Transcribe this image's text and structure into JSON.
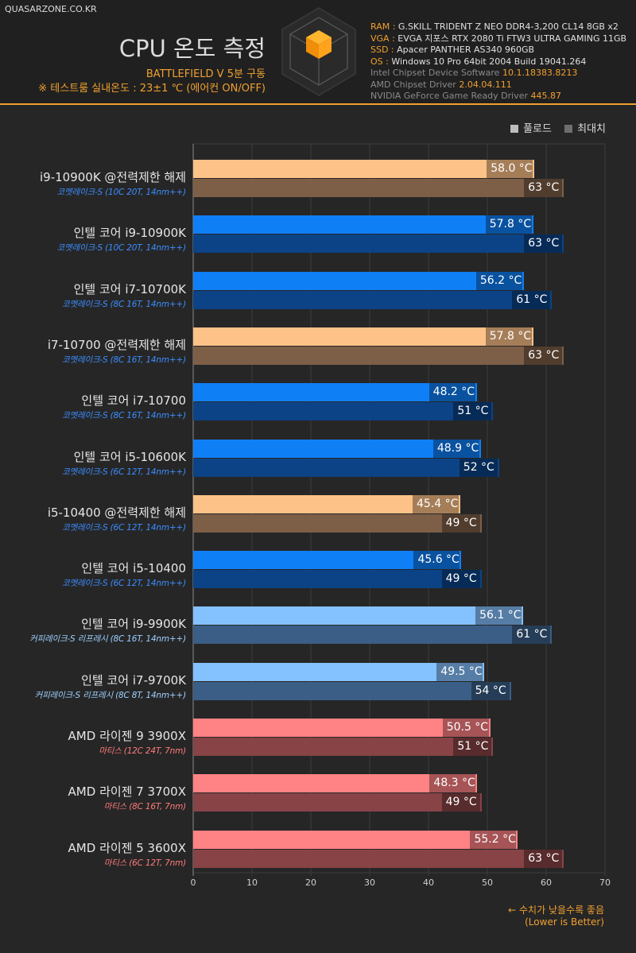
{
  "site": "QUASARZONE.CO.KR",
  "header": {
    "title": "CPU 온도 측정",
    "subtitle": "BATTLEFIELD V 5분 구동",
    "note": "※ 테스트룸 실내온도 : 23±1 ℃  (에어컨 ON/OFF)"
  },
  "specs": [
    {
      "key": "RAM",
      "value": "G.SKILL TRIDENT Z NEO DDR4-3,200 CL14 8GB x2"
    },
    {
      "key": "VGA",
      "value": "EVGA 지포스 RTX 2080 Ti FTW3 ULTRA GAMING 11GB"
    },
    {
      "key": "SSD",
      "value": "Apacer PANTHER AS340 960GB"
    },
    {
      "key": "OS",
      "value": "Windows 10 Pro 64bit 2004 Build 19041.264"
    }
  ],
  "drivers": [
    {
      "label": "Intel Chipset Device Software",
      "version": "10.1.18383.8213"
    },
    {
      "label": "AMD Chipset Driver",
      "version": "2.04.04.111"
    },
    {
      "label": "NVIDIA GeForce Game Ready Driver",
      "version": "445.87"
    }
  ],
  "legend": [
    "풀로드",
    "최대치"
  ],
  "colors": {
    "intel_oc_load": "#fdc287",
    "intel_oc_max": "#7d5f47",
    "intel10_load": "#0f7ff6",
    "intel10_max": "#0c4386",
    "intel9_load": "#84c1ff",
    "intel9_max": "#3b5e86",
    "amd_load": "#ff8284",
    "amd_max": "#874346",
    "sub_intel10": "#3b8dff",
    "sub_intel9": "#9cd0ff",
    "sub_amd": "#ff7a7a"
  },
  "chart_data": {
    "type": "bar",
    "orientation": "horizontal",
    "title": "CPU 온도 측정",
    "xlim": [
      0,
      70
    ],
    "xticks": [
      0,
      10,
      20,
      30,
      40,
      50,
      60,
      70
    ],
    "grid": true,
    "legend_position": "top-right",
    "categories": [
      {
        "name": "i9-10900K @전력제한 해제",
        "sub": "코멧레이크-S (10C 20T, 14nm++)",
        "group": "intel_oc"
      },
      {
        "name": "인텔 코어 i9-10900K",
        "sub": "코멧레이크-S (10C 20T, 14nm++)",
        "group": "intel10"
      },
      {
        "name": "인텔 코어 i7-10700K",
        "sub": "코멧레이크-S (8C 16T, 14nm++)",
        "group": "intel10"
      },
      {
        "name": "i7-10700 @전력제한 해제",
        "sub": "코멧레이크-S (8C 16T, 14nm++)",
        "group": "intel_oc"
      },
      {
        "name": "인텔 코어 i7-10700",
        "sub": "코멧레이크-S (8C 16T, 14nm++)",
        "group": "intel10"
      },
      {
        "name": "인텔 코어 i5-10600K",
        "sub": "코멧레이크-S (6C 12T, 14nm++)",
        "group": "intel10"
      },
      {
        "name": "i5-10400 @전력제한 해제",
        "sub": "코멧레이크-S (6C 12T, 14nm++)",
        "group": "intel_oc"
      },
      {
        "name": "인텔 코어 i5-10400",
        "sub": "코멧레이크-S (6C 12T, 14nm++)",
        "group": "intel10"
      },
      {
        "name": "인텔 코어 i9-9900K",
        "sub": "커피레이크-S 리프레시 (8C 16T, 14nm++)",
        "group": "intel9"
      },
      {
        "name": "인텔 코어 i7-9700K",
        "sub": "커피레이크-S 리프레시 (8C 8T, 14nm++)",
        "group": "intel9"
      },
      {
        "name": "AMD 라이젠 9 3900X",
        "sub": "마티스 (12C 24T, 7nm)",
        "group": "amd"
      },
      {
        "name": "AMD 라이젠 7 3700X",
        "sub": "마티스 (8C 16T, 7nm)",
        "group": "amd"
      },
      {
        "name": "AMD 라이젠 5 3600X",
        "sub": "마티스 (6C 12T, 7nm)",
        "group": "amd"
      }
    ],
    "series": [
      {
        "name": "풀로드",
        "unit": "°C",
        "values": [
          58.0,
          57.8,
          56.2,
          57.8,
          48.2,
          48.9,
          45.4,
          45.6,
          56.1,
          49.5,
          50.5,
          48.3,
          55.2
        ],
        "labels": [
          "58.0 °C",
          "57.8 °C",
          "56.2 °C",
          "57.8 °C",
          "48.2 °C",
          "48.9 °C",
          "45.4 °C",
          "45.6 °C",
          "56.1 °C",
          "49.5 °C",
          "50.5 °C",
          "48.3 °C",
          "55.2 °C"
        ]
      },
      {
        "name": "최대치",
        "unit": "°C",
        "values": [
          63,
          63,
          61,
          63,
          51,
          52,
          49,
          49,
          61,
          54,
          51,
          49,
          63
        ],
        "labels": [
          "63 °C",
          "63 °C",
          "61 °C",
          "63 °C",
          "51 °C",
          "52 °C",
          "49 °C",
          "49 °C",
          "61 °C",
          "54 °C",
          "51 °C",
          "49 °C",
          "63 °C"
        ]
      }
    ]
  },
  "footnote": {
    "line1": "← 수치가 낮을수록 좋음",
    "line2": "(Lower is Better)"
  }
}
